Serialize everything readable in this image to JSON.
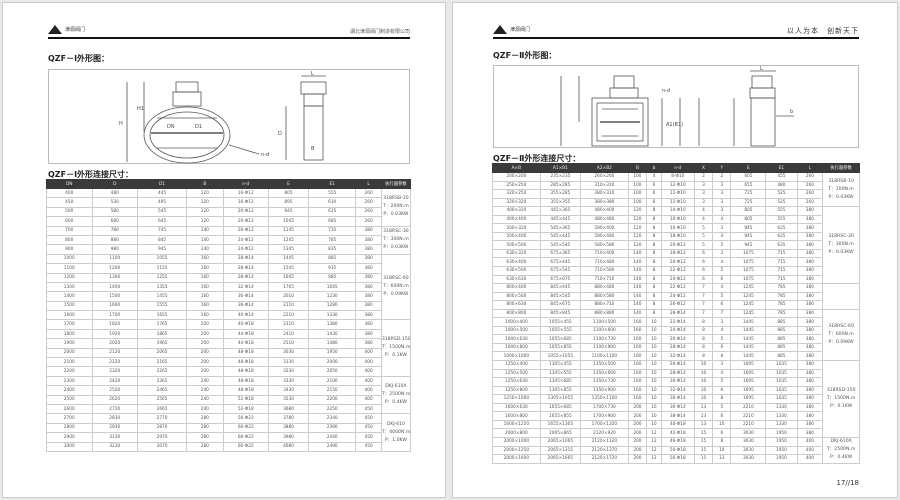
{
  "left": {
    "logo_text": "津源阀门",
    "company": "湖北津源阀门制造有限公司",
    "fig_title": "QZF－Ⅰ外形图：",
    "table_title": "QZF－Ⅰ外形连接尺寸：",
    "dim_labels": {
      "H": "H",
      "H1": "H1",
      "DN": "DN",
      "D1": "D1",
      "nd": "n-d",
      "L": "L",
      "D": "D",
      "B": "B"
    },
    "headers": [
      "DN",
      "D",
      "D1",
      "B",
      "n-d",
      "E",
      "E1",
      "L",
      "执行器参数"
    ],
    "rows": [
      [
        "400",
        "480",
        "445",
        "120",
        "16-Φ12",
        "805",
        "555",
        "260"
      ],
      [
        "450",
        "530",
        "495",
        "120",
        "16-Φ12",
        "895",
        "610",
        "260"
      ],
      [
        "500",
        "580",
        "545",
        "120",
        "20-Φ12",
        "945",
        "635",
        "260"
      ],
      [
        "600",
        "680",
        "645",
        "120",
        "20-Φ12",
        "1045",
        "685",
        "260"
      ],
      [
        "700",
        "780",
        "745",
        "140",
        "20-Φ12",
        "1145",
        "735",
        "380"
      ],
      [
        "800",
        "880",
        "845",
        "140",
        "24-Φ12",
        "1245",
        "785",
        "380"
      ],
      [
        "900",
        "980",
        "945",
        "140",
        "24-Φ12",
        "1345",
        "835",
        "380"
      ],
      [
        "1000",
        "1100",
        "1055",
        "160",
        "28-Φ14",
        "1445",
        "885",
        "380"
      ],
      [
        "1100",
        "1200",
        "1155",
        "160",
        "28-Φ14",
        "1545",
        "935",
        "380"
      ],
      [
        "1200",
        "1300",
        "1255",
        "160",
        "28-Φ14",
        "1645",
        "985",
        "380"
      ],
      [
        "1300",
        "1400",
        "1355",
        "160",
        "32-Φ14",
        "1765",
        "1045",
        "380"
      ],
      [
        "1400",
        "1500",
        "1455",
        "160",
        "36-Φ14",
        "2010",
        "1230",
        "380"
      ],
      [
        "1500",
        "1600",
        "1555",
        "160",
        "36-Φ14",
        "2110",
        "1280",
        "380"
      ],
      [
        "1600",
        "1700",
        "1655",
        "160",
        "40-Φ14",
        "2210",
        "1330",
        "380"
      ],
      [
        "1700",
        "1820",
        "1765",
        "200",
        "40-Φ18",
        "2310",
        "1380",
        "380"
      ],
      [
        "1800",
        "1920",
        "1865",
        "200",
        "44-Φ18",
        "2410",
        "1430",
        "380"
      ],
      [
        "1900",
        "2020",
        "1965",
        "200",
        "44-Φ18",
        "2510",
        "1480",
        "380"
      ],
      [
        "2000",
        "2120",
        "2065",
        "200",
        "48-Φ18",
        "3030",
        "1950",
        "400"
      ],
      [
        "2100",
        "2220",
        "2165",
        "200",
        "48-Φ18",
        "3130",
        "2000",
        "400"
      ],
      [
        "2200",
        "2320",
        "2265",
        "200",
        "48-Φ18",
        "3230",
        "2050",
        "400"
      ],
      [
        "2300",
        "2420",
        "2365",
        "240",
        "48-Φ18",
        "3330",
        "2100",
        "400"
      ],
      [
        "2400",
        "2520",
        "2465",
        "240",
        "48-Φ18",
        "3430",
        "2150",
        "400"
      ],
      [
        "2500",
        "2620",
        "2565",
        "240",
        "52-Φ18",
        "3530",
        "2200",
        "400"
      ],
      [
        "2600",
        "2720",
        "2665",
        "240",
        "52-Φ18",
        "3680",
        "2250",
        "450"
      ],
      [
        "2700",
        "2830",
        "2770",
        "280",
        "56-Φ22",
        "3780",
        "2340",
        "450"
      ],
      [
        "2800",
        "2930",
        "2870",
        "280",
        "60-Φ22",
        "3880",
        "2390",
        "450"
      ],
      [
        "2900",
        "3130",
        "2970",
        "280",
        "60-Φ22",
        "3980",
        "2440",
        "450"
      ],
      [
        "3000",
        "3230",
        "3070",
        "280",
        "60-Φ22",
        "4080",
        "2490",
        "450"
      ]
    ],
    "actuators": [
      {
        "span": 4,
        "lines": [
          "318RSB-20",
          "T：200N.m",
          "P：0.03KW"
        ]
      },
      {
        "span": 3,
        "lines": [
          "318RSC-30",
          "T：300N.m",
          "P：0.03KW"
        ]
      },
      {
        "span": 7,
        "lines": [
          "318RSC-60",
          "T：600N.m",
          "P：0.09KW"
        ]
      },
      {
        "span": 6,
        "lines": [
          "318RSD-150",
          "T：1500N.m",
          "P：0.1KW"
        ]
      },
      {
        "span": 4,
        "lines": [
          "DKJ-610A",
          "T：2500N.m",
          "P：0.4KW"
        ]
      },
      {
        "span": 4,
        "lines": [
          "DKJ-610",
          "T：4000N.m",
          "P：1.0KW"
        ]
      }
    ]
  },
  "right": {
    "logo_text": "津源阀门",
    "slogan": "以人为本　创新天下",
    "fig_title": "QZF－Ⅱ外形图：",
    "table_title": "QZF－Ⅱ外形连接尺寸：",
    "dim_labels": {
      "nd": "n-d",
      "L": "L",
      "A": "A1(B1)",
      "b": "b"
    },
    "headers": [
      "A×B",
      "A1×B1",
      "A2×B2",
      "B",
      "b",
      "n-d",
      "X",
      "Y",
      "E",
      "E1",
      "L",
      "执行器参数"
    ],
    "rows": [
      [
        "200×200",
        "235×235",
        "260×260",
        "100",
        "4",
        "8-Φ10",
        "2",
        "2",
        "605",
        "455",
        "260"
      ],
      [
        "250×250",
        "285×285",
        "310×310",
        "100",
        "6",
        "12-Φ10",
        "3",
        "3",
        "655",
        "480",
        "260"
      ],
      [
        "320×250",
        "355×285",
        "380×310",
        "100",
        "6",
        "12-Φ10",
        "3",
        "3",
        "725",
        "525",
        "260"
      ],
      [
        "320×320",
        "355×355",
        "380×380",
        "100",
        "6",
        "12-Φ10",
        "3",
        "3",
        "725",
        "525",
        "260"
      ],
      [
        "400×320",
        "445×365",
        "480×400",
        "120",
        "8",
        "14-Φ10",
        "4",
        "3",
        "805",
        "555",
        "380"
      ],
      [
        "400×400",
        "445×445",
        "480×480",
        "120",
        "8",
        "16-Φ10",
        "4",
        "4",
        "805",
        "555",
        "380"
      ],
      [
        "500×320",
        "545×365",
        "580×400",
        "120",
        "8",
        "16-Φ10",
        "5",
        "3",
        "945",
        "635",
        "380"
      ],
      [
        "500×400",
        "545×445",
        "580×480",
        "120",
        "8",
        "18-Φ10",
        "5",
        "4",
        "945",
        "635",
        "380"
      ],
      [
        "500×500",
        "545×545",
        "580×580",
        "120",
        "8",
        "20-Φ12",
        "5",
        "5",
        "945",
        "635",
        "380"
      ],
      [
        "630×320",
        "675×365",
        "710×400",
        "140",
        "8",
        "18-Φ12",
        "6",
        "3",
        "1075",
        "715",
        "380"
      ],
      [
        "630×400",
        "675×445",
        "710×480",
        "140",
        "8",
        "20-Φ12",
        "6",
        "4",
        "1075",
        "715",
        "380"
      ],
      [
        "630×500",
        "675×545",
        "710×580",
        "140",
        "8",
        "22-Φ12",
        "6",
        "5",
        "1075",
        "715",
        "380"
      ],
      [
        "630×630",
        "675×675",
        "710×710",
        "140",
        "8",
        "24-Φ12",
        "6",
        "6",
        "1075",
        "715",
        "380"
      ],
      [
        "800×400",
        "845×445",
        "880×480",
        "140",
        "8",
        "22-Φ12",
        "7",
        "4",
        "1245",
        "785",
        "380"
      ],
      [
        "800×500",
        "845×545",
        "880×580",
        "140",
        "8",
        "24-Φ12",
        "7",
        "5",
        "1245",
        "785",
        "380"
      ],
      [
        "800×630",
        "845×675",
        "880×710",
        "140",
        "8",
        "26-Φ12",
        "7",
        "6",
        "1245",
        "785",
        "380"
      ],
      [
        "800×800",
        "845×845",
        "880×880",
        "140",
        "8",
        "28-Φ14",
        "7",
        "7",
        "1245",
        "785",
        "380"
      ],
      [
        "1000×400",
        "1055×455",
        "1100×500",
        "160",
        "10",
        "22-Φ14",
        "8",
        "3",
        "1445",
        "885",
        "380"
      ],
      [
        "1000×500",
        "1055×555",
        "1100×600",
        "160",
        "10",
        "24-Φ14",
        "8",
        "4",
        "1445",
        "885",
        "380"
      ],
      [
        "1000×630",
        "1055×685",
        "1100×730",
        "160",
        "10",
        "26-Φ14",
        "8",
        "5",
        "1445",
        "885",
        "380"
      ],
      [
        "1000×800",
        "1055×855",
        "1100×900",
        "160",
        "10",
        "28-Φ14",
        "8",
        "6",
        "1445",
        "885",
        "380"
      ],
      [
        "1000×1000",
        "1055×1055",
        "1100×1100",
        "160",
        "10",
        "32-Φ14",
        "8",
        "8",
        "1445",
        "885",
        "380"
      ],
      [
        "1250×400",
        "1305×455",
        "1350×500",
        "160",
        "10",
        "26-Φ14",
        "10",
        "3",
        "1695",
        "1035",
        "380"
      ],
      [
        "1250×500",
        "1305×555",
        "1350×600",
        "160",
        "10",
        "28-Φ14",
        "10",
        "4",
        "1695",
        "1035",
        "380"
      ],
      [
        "1250×630",
        "1305×685",
        "1350×730",
        "160",
        "10",
        "30-Φ14",
        "10",
        "5",
        "1695",
        "1035",
        "380"
      ],
      [
        "1250×800",
        "1305×855",
        "1350×900",
        "160",
        "10",
        "32-Φ14",
        "10",
        "6",
        "1695",
        "1035",
        "380"
      ],
      [
        "1250×1000",
        "1305×1055",
        "1350×1100",
        "160",
        "10",
        "36-Φ14",
        "10",
        "8",
        "1695",
        "1035",
        "380"
      ],
      [
        "1600×630",
        "1655×685",
        "1700×730",
        "200",
        "10",
        "36-Φ14",
        "13",
        "5",
        "2210",
        "1330",
        "380"
      ],
      [
        "1600×800",
        "1655×855",
        "1700×900",
        "200",
        "10",
        "38-Φ14",
        "13",
        "6",
        "2210",
        "1330",
        "380"
      ],
      [
        "1600×1250",
        "1655×1305",
        "1700×1350",
        "200",
        "10",
        "46-Φ18",
        "13",
        "10",
        "2210",
        "1330",
        "380"
      ],
      [
        "2000×800",
        "2065×865",
        "2120×920",
        "200",
        "12",
        "42-Φ18",
        "15",
        "6",
        "3030",
        "1950",
        "380"
      ],
      [
        "2000×1000",
        "2065×1065",
        "2120×1120",
        "200",
        "12",
        "46-Φ18",
        "15",
        "8",
        "3030",
        "1950",
        "400"
      ],
      [
        "2000×1250",
        "2065×1315",
        "2120×1370",
        "200",
        "12",
        "50-Φ18",
        "15",
        "10",
        "3030",
        "1950",
        "400"
      ],
      [
        "2000×1600",
        "2065×1665",
        "2120×1720",
        "200",
        "12",
        "56-Φ18",
        "15",
        "13",
        "3030",
        "1950",
        "400"
      ]
    ],
    "actuators": [
      {
        "span": 4,
        "lines": [
          "318RSB-10",
          "T：100N.m",
          "P：0.03KW"
        ]
      },
      {
        "span": 9,
        "lines": [
          "318RSC-30",
          "T：300N.m",
          "P：0.03KW"
        ]
      },
      {
        "span": 3,
        "lines": []
      },
      {
        "span": 6,
        "lines": [
          "318RSC-60",
          "T：600N.m",
          "P：0.09KW"
        ]
      },
      {
        "span": 9,
        "lines": [
          "318RSD-150",
          "T：1500N.m",
          "P：0.1KW"
        ]
      },
      {
        "span": 3,
        "lines": [
          "DKJ-610A",
          "T：2500N.m",
          "P：0.4KW"
        ]
      }
    ],
    "page_number": "17//18"
  }
}
